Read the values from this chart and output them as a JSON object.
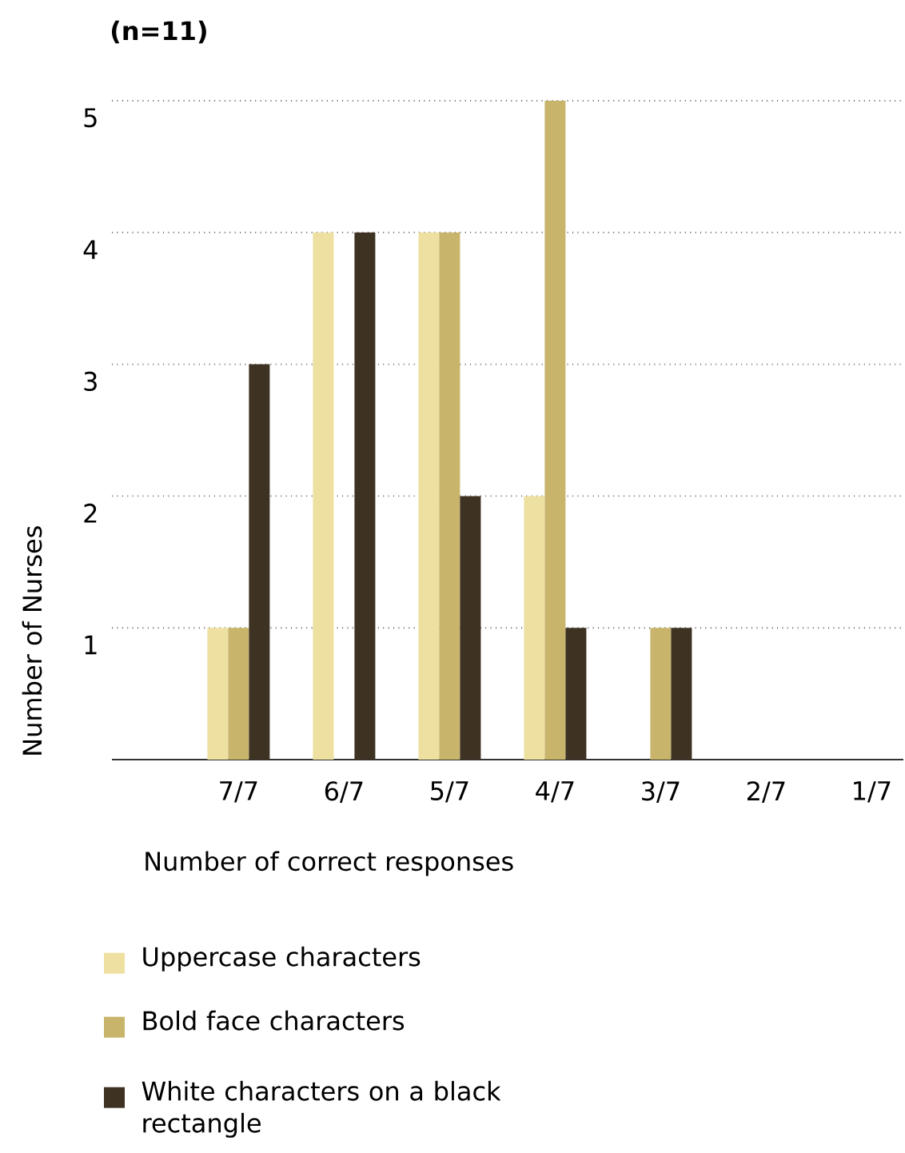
{
  "chart_data": {
    "type": "bar",
    "title": "(n=11)",
    "xlabel": "Number of correct responses",
    "ylabel": "Number of Nurses",
    "categories": [
      "7/7",
      "6/7",
      "5/7",
      "4/7",
      "3/7",
      "2/7",
      "1/7"
    ],
    "series": [
      {
        "name": "Uppercase characters",
        "color": "#eee0a0",
        "values": [
          1,
          4,
          4,
          2,
          0,
          0,
          0
        ]
      },
      {
        "name": "Bold face characters",
        "color": "#c8b46a",
        "values": [
          1,
          0,
          4,
          5,
          1,
          0,
          0
        ]
      },
      {
        "name": "White characters on a black rectangle",
        "color": "#3e3222",
        "values": [
          3,
          4,
          2,
          1,
          1,
          0,
          0
        ]
      }
    ],
    "ylim": [
      0,
      5
    ],
    "yticks": [
      1,
      2,
      3,
      4,
      5
    ],
    "grid": "y",
    "legend": "bottom"
  }
}
